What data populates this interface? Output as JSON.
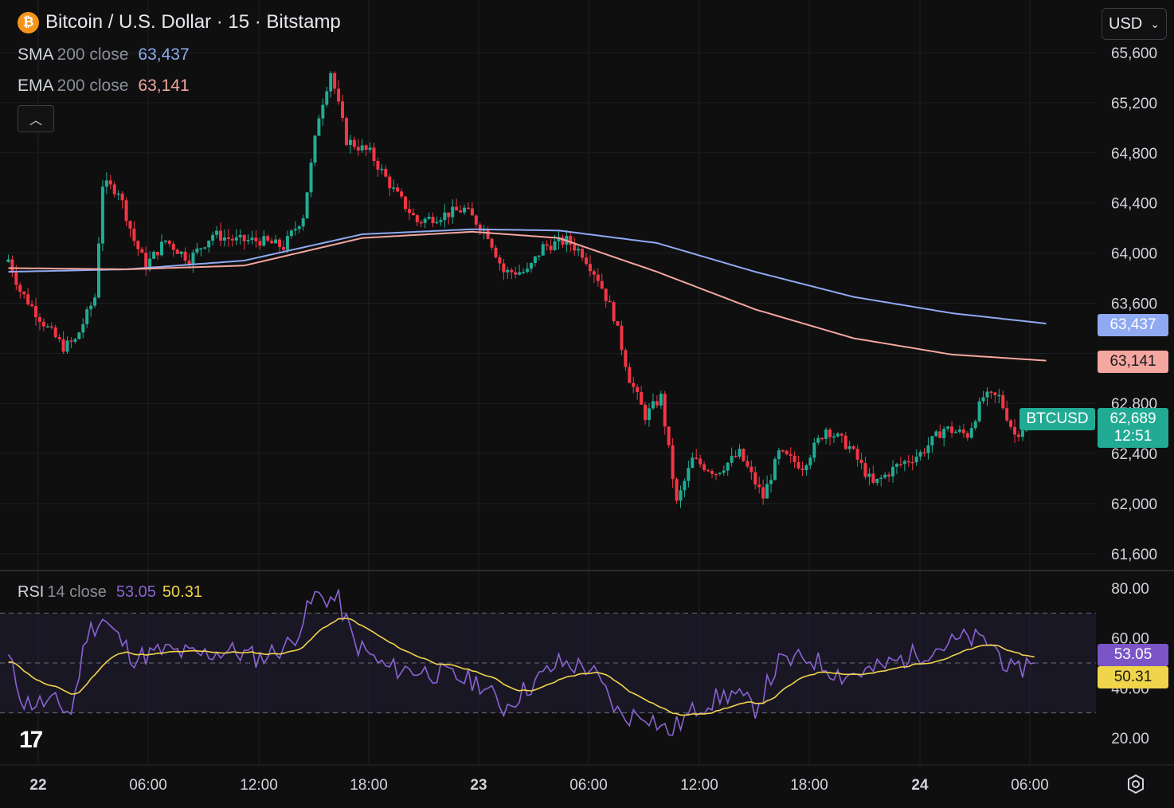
{
  "header": {
    "symbol_icon": "bitcoin-icon",
    "title": "Bitcoin / U.S. Dollar · 15 · Bitstamp",
    "indicators": [
      {
        "name": "SMA",
        "params": "200 close",
        "value": "63,437",
        "color": "#8fa9f2"
      },
      {
        "name": "EMA",
        "params": "200 close",
        "value": "63,141",
        "color": "#f4a6a0"
      }
    ],
    "collapse_icon": "chevron-up-icon"
  },
  "currency": {
    "label": "USD",
    "icon": "chevron-down-icon"
  },
  "rsi_legend": {
    "name": "RSI",
    "params": "14 close",
    "value": "53.05",
    "ma_value": "50.31",
    "color": "#8a63d2",
    "ma_color": "#f0d44a"
  },
  "tags": {
    "sma": "63,437",
    "ema": "63,141",
    "symbol": "BTCUSD",
    "last_price": "62,689",
    "countdown": "12:51",
    "rsi": "53.05",
    "rsi_ma": "50.31"
  },
  "colors": {
    "up": "#22ab94",
    "down": "#f23645",
    "background": "#0f0f0f"
  },
  "chart_data": {
    "type": "candlestick",
    "price_axis": {
      "ticks": [
        65600,
        65200,
        64800,
        64400,
        64000,
        63600,
        62800,
        62400,
        62000,
        61600
      ],
      "range": [
        61500,
        65800
      ]
    },
    "rsi_axis": {
      "ticks": [
        "80.00",
        "60.00",
        "40.00",
        "20.00"
      ],
      "range": [
        15,
        85
      ],
      "bands": [
        70,
        50,
        30
      ]
    },
    "time_axis": {
      "labels": [
        "22",
        "06:00",
        "12:00",
        "18:00",
        "23",
        "06:00",
        "12:00",
        "18:00",
        "24",
        "06:00"
      ],
      "bold": [
        "22",
        "23",
        "24"
      ]
    },
    "price_keypoints": [
      {
        "i": 0,
        "p": 63950
      },
      {
        "i": 3,
        "p": 63700
      },
      {
        "i": 10,
        "p": 63400
      },
      {
        "i": 14,
        "p": 63250
      },
      {
        "i": 17,
        "p": 63300
      },
      {
        "i": 22,
        "p": 63650
      },
      {
        "i": 24,
        "p": 64550
      },
      {
        "i": 28,
        "p": 64500
      },
      {
        "i": 32,
        "p": 64100
      },
      {
        "i": 35,
        "p": 63900
      },
      {
        "i": 40,
        "p": 64100
      },
      {
        "i": 46,
        "p": 63950
      },
      {
        "i": 52,
        "p": 64150
      },
      {
        "i": 58,
        "p": 64100
      },
      {
        "i": 64,
        "p": 64100
      },
      {
        "i": 70,
        "p": 64050
      },
      {
        "i": 75,
        "p": 64300
      },
      {
        "i": 79,
        "p": 65100
      },
      {
        "i": 82,
        "p": 65450
      },
      {
        "i": 86,
        "p": 64900
      },
      {
        "i": 92,
        "p": 64800
      },
      {
        "i": 98,
        "p": 64500
      },
      {
        "i": 104,
        "p": 64250
      },
      {
        "i": 110,
        "p": 64300
      },
      {
        "i": 116,
        "p": 64350
      },
      {
        "i": 122,
        "p": 64150
      },
      {
        "i": 126,
        "p": 63850
      },
      {
        "i": 132,
        "p": 63850
      },
      {
        "i": 136,
        "p": 64050
      },
      {
        "i": 142,
        "p": 64100
      },
      {
        "i": 146,
        "p": 64000
      },
      {
        "i": 150,
        "p": 63800
      },
      {
        "i": 154,
        "p": 63500
      },
      {
        "i": 158,
        "p": 63000
      },
      {
        "i": 162,
        "p": 62700
      },
      {
        "i": 166,
        "p": 62850
      },
      {
        "i": 170,
        "p": 62000
      },
      {
        "i": 174,
        "p": 62350
      },
      {
        "i": 180,
        "p": 62250
      },
      {
        "i": 186,
        "p": 62400
      },
      {
        "i": 192,
        "p": 62050
      },
      {
        "i": 196,
        "p": 62400
      },
      {
        "i": 202,
        "p": 62300
      },
      {
        "i": 208,
        "p": 62600
      },
      {
        "i": 214,
        "p": 62450
      },
      {
        "i": 220,
        "p": 62150
      },
      {
        "i": 226,
        "p": 62300
      },
      {
        "i": 232,
        "p": 62400
      },
      {
        "i": 238,
        "p": 62600
      },
      {
        "i": 244,
        "p": 62550
      },
      {
        "i": 248,
        "p": 62850
      },
      {
        "i": 252,
        "p": 62850
      },
      {
        "i": 256,
        "p": 62550
      },
      {
        "i": 261,
        "p": 62689
      }
    ],
    "sma200": [
      {
        "i": 0,
        "p": 63850
      },
      {
        "i": 30,
        "p": 63870
      },
      {
        "i": 60,
        "p": 63940
      },
      {
        "i": 90,
        "p": 64150
      },
      {
        "i": 118,
        "p": 64190
      },
      {
        "i": 140,
        "p": 64180
      },
      {
        "i": 165,
        "p": 64080
      },
      {
        "i": 190,
        "p": 63850
      },
      {
        "i": 215,
        "p": 63650
      },
      {
        "i": 240,
        "p": 63520
      },
      {
        "i": 264,
        "p": 63437
      }
    ],
    "ema200": [
      {
        "i": 0,
        "p": 63880
      },
      {
        "i": 30,
        "p": 63870
      },
      {
        "i": 60,
        "p": 63900
      },
      {
        "i": 90,
        "p": 64120
      },
      {
        "i": 118,
        "p": 64170
      },
      {
        "i": 140,
        "p": 64120
      },
      {
        "i": 165,
        "p": 63850
      },
      {
        "i": 190,
        "p": 63550
      },
      {
        "i": 215,
        "p": 63320
      },
      {
        "i": 240,
        "p": 63190
      },
      {
        "i": 264,
        "p": 63141
      }
    ],
    "rsi_keypoints": [
      {
        "i": 0,
        "p": 52
      },
      {
        "i": 4,
        "p": 34
      },
      {
        "i": 12,
        "p": 34
      },
      {
        "i": 16,
        "p": 30
      },
      {
        "i": 20,
        "p": 62
      },
      {
        "i": 24,
        "p": 68
      },
      {
        "i": 28,
        "p": 60
      },
      {
        "i": 32,
        "p": 52
      },
      {
        "i": 40,
        "p": 55
      },
      {
        "i": 48,
        "p": 53
      },
      {
        "i": 56,
        "p": 55
      },
      {
        "i": 64,
        "p": 52
      },
      {
        "i": 72,
        "p": 58
      },
      {
        "i": 78,
        "p": 77
      },
      {
        "i": 84,
        "p": 75
      },
      {
        "i": 88,
        "p": 58
      },
      {
        "i": 96,
        "p": 48
      },
      {
        "i": 104,
        "p": 47
      },
      {
        "i": 112,
        "p": 45
      },
      {
        "i": 120,
        "p": 42
      },
      {
        "i": 126,
        "p": 32
      },
      {
        "i": 132,
        "p": 40
      },
      {
        "i": 140,
        "p": 50
      },
      {
        "i": 148,
        "p": 48
      },
      {
        "i": 156,
        "p": 28
      },
      {
        "i": 162,
        "p": 30
      },
      {
        "i": 168,
        "p": 22
      },
      {
        "i": 176,
        "p": 33
      },
      {
        "i": 184,
        "p": 38
      },
      {
        "i": 190,
        "p": 32
      },
      {
        "i": 196,
        "p": 50
      },
      {
        "i": 204,
        "p": 52
      },
      {
        "i": 212,
        "p": 45
      },
      {
        "i": 220,
        "p": 47
      },
      {
        "i": 228,
        "p": 52
      },
      {
        "i": 236,
        "p": 56
      },
      {
        "i": 244,
        "p": 60
      },
      {
        "i": 250,
        "p": 58
      },
      {
        "i": 256,
        "p": 45
      },
      {
        "i": 261,
        "p": 53
      }
    ]
  }
}
